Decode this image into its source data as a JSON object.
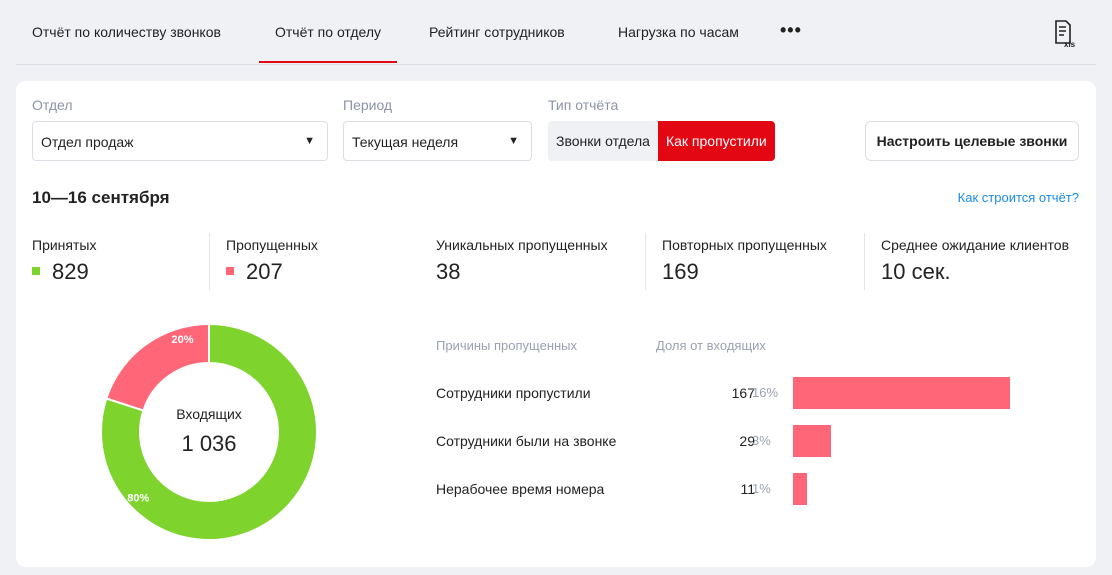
{
  "tabs": [
    {
      "label": "Отчёт по количеству звонков"
    },
    {
      "label": "Отчёт по отделу",
      "active": true
    },
    {
      "label": "Рейтинг сотрудников"
    },
    {
      "label": "Нагрузка по часам"
    }
  ],
  "more_label": "•••",
  "export": {
    "icon": "xls-file-icon",
    "label": "xls"
  },
  "filters": {
    "department_label": "Отдел",
    "department_value": "Отдел продаж",
    "period_label": "Период",
    "period_value": "Текущая неделя",
    "type_label": "Тип отчёта",
    "type_options": [
      "Звонки отдела",
      "Как пропустили"
    ],
    "type_selected": "Как пропустили",
    "configure_button": "Настроить целевые звонки"
  },
  "date_range": "10—16 сентября",
  "help_link": "Как строится отчёт?",
  "stats": [
    {
      "label": "Принятых",
      "value": "829",
      "color": "#7ed32d"
    },
    {
      "label": "Пропущенных",
      "value": "207",
      "color": "#ff6677"
    },
    {
      "label": "Уникальных пропущенных",
      "value": "38"
    },
    {
      "label": "Повторных пропущенных",
      "value": "169"
    },
    {
      "label": "Среднее ожидание клиентов",
      "value": "10 сек."
    }
  ],
  "chart_data": [
    {
      "type": "pie",
      "title": "Входящих",
      "total_label": "1 036",
      "slices": [
        {
          "name": "Пропущенных",
          "value": 207,
          "label": "20%",
          "color": "#ff6677"
        },
        {
          "name": "Принятых",
          "value": 829,
          "label": "80%",
          "color": "#7ed32d"
        }
      ]
    },
    {
      "type": "bar",
      "headers": [
        "Причины пропущенных",
        "Доля от входящих"
      ],
      "categories": [
        "Сотрудники пропустили",
        "Сотрудники были на звонке",
        "Нерабочее время номера"
      ],
      "values": [
        167,
        29,
        11
      ],
      "percents": [
        "16%",
        "3%",
        "1%"
      ],
      "color": "#ff6677"
    }
  ]
}
